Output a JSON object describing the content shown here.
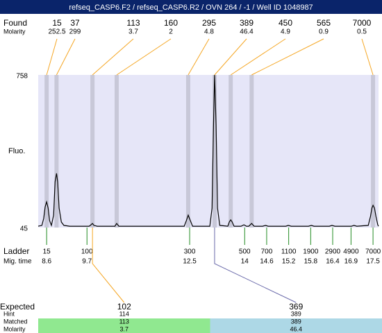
{
  "title": "refseq_CASP6.F2 / refseq_CASP6.R2 / OVN 264 / -1 / Well ID 1048987",
  "found": {
    "label": "Found",
    "molarity_label": "Molarity",
    "sizes": [
      15,
      37,
      113,
      160,
      295,
      389,
      450,
      565,
      7000
    ],
    "molarity": [
      252.5,
      299,
      3.7,
      2,
      4.8,
      46.4,
      4.9,
      0.9,
      0.5
    ],
    "times": [
      8.6,
      8.87,
      9.85,
      10.51,
      12.46,
      13.18,
      13.62,
      14.19,
      17.5
    ]
  },
  "plot": {
    "y_label": "Fluo.",
    "ylim": [
      45,
      758
    ],
    "yticks": [
      758,
      45
    ],
    "xlim": [
      8.37,
      17.65
    ],
    "background": "#e6e6f8",
    "band_color": "#c8c8d8",
    "trace_color": "#000000",
    "trace": {
      "time": [
        8.37,
        8.47,
        8.52,
        8.56,
        8.6,
        8.64,
        8.68,
        8.73,
        8.79,
        8.83,
        8.87,
        8.9,
        8.94,
        9.0,
        9.07,
        9.23,
        9.76,
        9.81,
        9.85,
        9.89,
        9.98,
        10.46,
        10.51,
        10.57,
        12.35,
        12.41,
        12.46,
        12.52,
        12.58,
        13.05,
        13.11,
        13.15,
        13.18,
        13.22,
        13.26,
        13.32,
        13.54,
        13.58,
        13.62,
        13.66,
        13.71,
        13.9,
        13.98,
        14.05,
        14.11,
        14.19,
        14.26,
        14.49,
        14.57,
        14.64,
        15.12,
        15.19,
        15.27,
        15.74,
        15.82,
        15.89,
        16.31,
        16.38,
        16.46,
        16.91,
        16.98,
        17.06,
        17.37,
        17.43,
        17.47,
        17.5,
        17.54,
        17.58,
        17.63,
        17.65
      ],
      "fluorescence": [
        51,
        55,
        87,
        142,
        165,
        136,
        77,
        55,
        103,
        259,
        298,
        259,
        136,
        71,
        55,
        51,
        51,
        58,
        64,
        55,
        51,
        51,
        64,
        51,
        51,
        77,
        103,
        77,
        51,
        51,
        136,
        525,
        758,
        525,
        136,
        55,
        51,
        71,
        81,
        71,
        51,
        51,
        58,
        51,
        51,
        64,
        51,
        51,
        55,
        51,
        51,
        55,
        51,
        51,
        55,
        51,
        51,
        55,
        51,
        51,
        55,
        51,
        55,
        97,
        136,
        149,
        136,
        97,
        58,
        51
      ]
    }
  },
  "ladder": {
    "label": "Ladder",
    "time_label": "Mig. time",
    "color": "#228b22",
    "sizes": [
      15,
      100,
      300,
      500,
      700,
      1100,
      1900,
      2900,
      4900,
      7000
    ],
    "times": [
      8.6,
      9.7,
      12.5,
      14,
      14.6,
      15.2,
      15.8,
      16.4,
      16.9,
      17.5
    ]
  },
  "expected": {
    "labels": [
      "Expected",
      "Hint",
      "Matched",
      "Molarity"
    ],
    "columns": [
      {
        "expected": 102,
        "hint": 114,
        "matched": 113,
        "molarity": 3.7,
        "time": 9.85,
        "color": "#90e890"
      },
      {
        "expected": 369,
        "hint": 389,
        "matched": 389,
        "molarity": 46.4,
        "time": 13.18,
        "color": "#add8e6"
      }
    ]
  }
}
